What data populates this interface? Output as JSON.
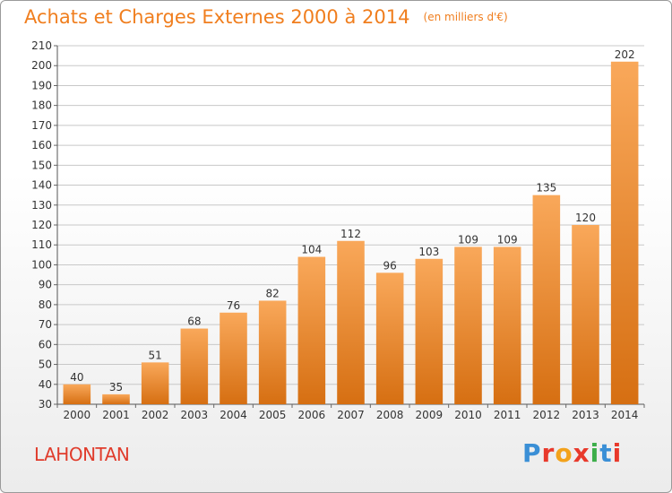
{
  "header": {
    "title": "Achats et Charges Externes 2000 à 2014",
    "unit": "(en milliers d'€)"
  },
  "footer": {
    "commune": "LAHONTAN",
    "logo": {
      "text": "Proxiti",
      "letter_colors": [
        "#3a8fd6",
        "#e8392b",
        "#f3a21b",
        "#e8392b",
        "#3cae4a",
        "#3a8fd6",
        "#e8392b"
      ]
    }
  },
  "colors": {
    "title": "#f07e1e",
    "bar_top": "#f9a85a",
    "bar_bottom": "#d66f12",
    "commune": "#e03c2c",
    "grid": "#c8c8c8"
  },
  "chart_data": {
    "type": "bar",
    "title": "Achats et Charges Externes 2000 à 2014",
    "subtitle": "(en milliers d'€)",
    "xlabel": "",
    "ylabel": "",
    "categories": [
      "2000",
      "2001",
      "2002",
      "2003",
      "2004",
      "2005",
      "2006",
      "2007",
      "2008",
      "2009",
      "2010",
      "2011",
      "2012",
      "2013",
      "2014"
    ],
    "values": [
      40,
      35,
      51,
      68,
      76,
      82,
      104,
      112,
      96,
      103,
      109,
      109,
      135,
      120,
      202
    ],
    "ylim": [
      30,
      210
    ],
    "ytick_step": 10,
    "grid": true,
    "data_labels": true
  }
}
